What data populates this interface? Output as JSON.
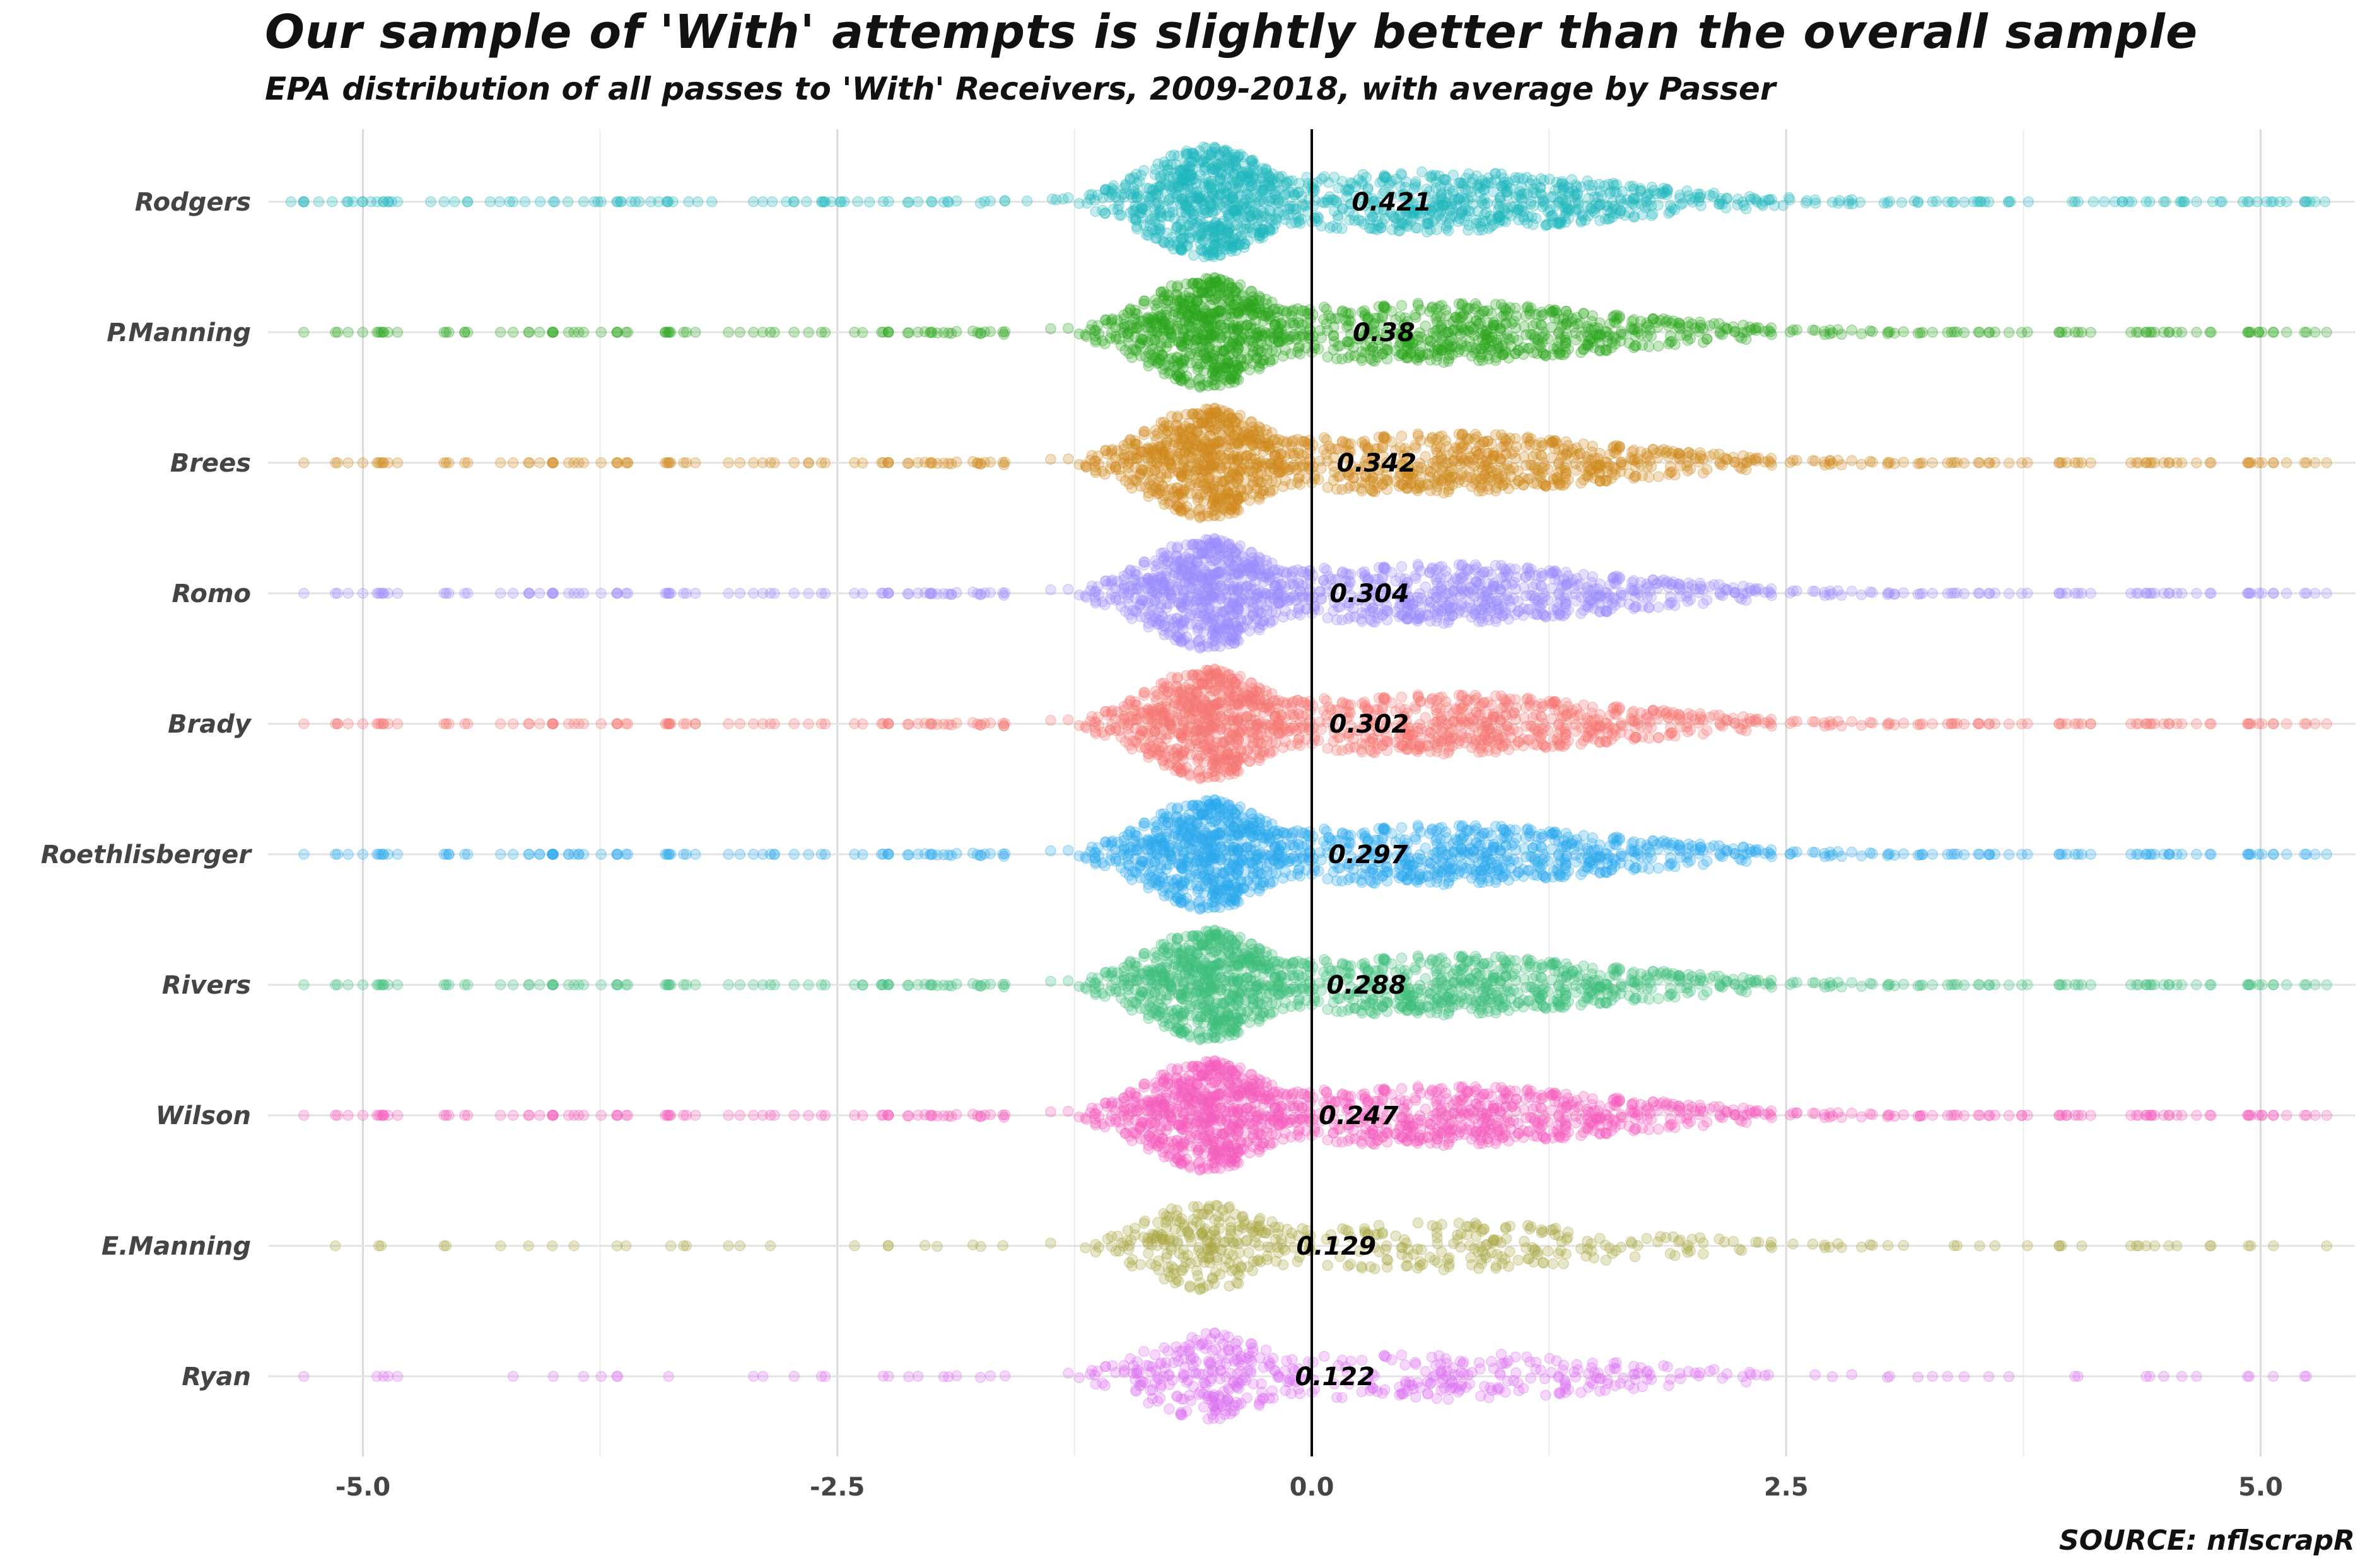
{
  "title": "Our sample of 'With' attempts is slightly better than the overall sample",
  "subtitle": "EPA distribution of all passes to 'With' Receivers, 2009-2018, with average by Passer",
  "caption": "SOURCE: nflscrapR",
  "chart_data": {
    "type": "scatter",
    "subtype": "beeswarm",
    "title": "Our sample of 'With' attempts is slightly better than the overall sample",
    "subtitle": "EPA distribution of all passes to 'With' Receivers, 2009-2018, with average by Passer",
    "xlabel": "",
    "ylabel": "",
    "xlim": [
      -5.5,
      5.5
    ],
    "x_ticks": [
      -5.0,
      -2.5,
      0.0,
      2.5,
      5.0
    ],
    "x_tick_labels": [
      "-5.0",
      "-2.5",
      "0.0",
      "2.5",
      "5.0"
    ],
    "reference_line_x": 0,
    "grid": true,
    "legend": "none",
    "categories": [
      "Rodgers",
      "P.Manning",
      "Brees",
      "Romo",
      "Brady",
      "Roethlisberger",
      "Rivers",
      "Wilson",
      "E.Manning",
      "Ryan"
    ],
    "series": [
      {
        "name": "Rodgers",
        "mean_epa": 0.421,
        "label": "0.421",
        "color": "#1fb8bd"
      },
      {
        "name": "P.Manning",
        "mean_epa": 0.38,
        "label": "0.38",
        "color": "#2ca61c"
      },
      {
        "name": "Brees",
        "mean_epa": 0.342,
        "label": "0.342",
        "color": "#cf8a1b"
      },
      {
        "name": "Romo",
        "mean_epa": 0.304,
        "label": "0.304",
        "color": "#9b8cfb"
      },
      {
        "name": "Brady",
        "mean_epa": 0.302,
        "label": "0.302",
        "color": "#f57873"
      },
      {
        "name": "Roethlisberger",
        "mean_epa": 0.297,
        "label": "0.297",
        "color": "#2aa9ee"
      },
      {
        "name": "Rivers",
        "mean_epa": 0.288,
        "label": "0.288",
        "color": "#3ebd7a"
      },
      {
        "name": "Wilson",
        "mean_epa": 0.247,
        "label": "0.247",
        "color": "#f45fbd"
      },
      {
        "name": "E.Manning",
        "mean_epa": 0.129,
        "label": "0.129",
        "color": "#a9a53f"
      },
      {
        "name": "Ryan",
        "mean_epa": 0.122,
        "label": "0.122",
        "color": "#dc6ff0"
      }
    ]
  }
}
